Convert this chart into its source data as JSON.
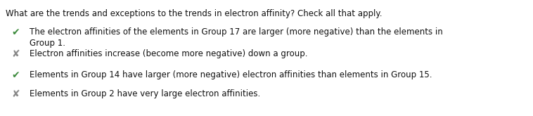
{
  "title": "What are the trends and exceptions to the trends in electron affinity? Check all that apply.",
  "items": [
    {
      "symbol": "✔",
      "symbol_color": "#3d8b3d",
      "text": "The electron affinities of the elements in Group 17 are larger (more negative) than the elements in\nGroup 1.",
      "correct": true
    },
    {
      "symbol": "✘",
      "symbol_color": "#888888",
      "text": "Electron affinities increase (become more negative) down a group.",
      "correct": false
    },
    {
      "symbol": "✔",
      "symbol_color": "#3d8b3d",
      "text": "Elements in Group 14 have larger (more negative) electron affinities than elements in Group 15.",
      "correct": true
    },
    {
      "symbol": "✘",
      "symbol_color": "#888888",
      "text": "Elements in Group 2 have very large electron affinities.",
      "correct": false
    }
  ],
  "bg_color": "#ffffff",
  "title_fontsize": 8.5,
  "item_fontsize": 8.5,
  "title_color": "#111111",
  "item_text_color": "#111111",
  "symbol_fontsize": 10,
  "fig_width": 7.58,
  "fig_height": 1.65,
  "dpi": 100
}
